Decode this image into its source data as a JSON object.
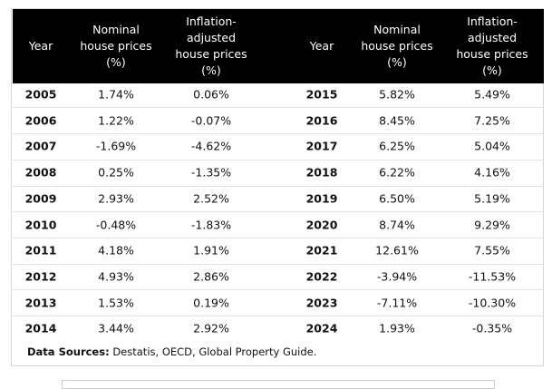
{
  "table": {
    "headers": [
      "Year",
      "Nominal house prices (%)",
      "Inflation-adjusted house prices (%)",
      "Year",
      "Nominal house prices (%)",
      "Inflation-adjusted house prices (%)"
    ],
    "rows": [
      [
        "2005",
        "1.74%",
        "0.06%",
        "2015",
        "5.82%",
        "5.49%"
      ],
      [
        "2006",
        "1.22%",
        "-0.07%",
        "2016",
        "8.45%",
        "7.25%"
      ],
      [
        "2007",
        "-1.69%",
        "-4.62%",
        "2017",
        "6.25%",
        "5.04%"
      ],
      [
        "2008",
        "0.25%",
        "-1.35%",
        "2018",
        "6.22%",
        "4.16%"
      ],
      [
        "2009",
        "2.93%",
        "2.52%",
        "2019",
        "6.50%",
        "5.19%"
      ],
      [
        "2010",
        "-0.48%",
        "-1.83%",
        "2020",
        "8.74%",
        "9.29%"
      ],
      [
        "2011",
        "4.18%",
        "1.91%",
        "2021",
        "12.61%",
        "7.55%"
      ],
      [
        "2012",
        "4.93%",
        "2.86%",
        "2022",
        "-3.94%",
        "-11.53%"
      ],
      [
        "2013",
        "1.53%",
        "0.19%",
        "2023",
        "-7.11%",
        "-10.30%"
      ],
      [
        "2014",
        "3.44%",
        "2.92%",
        "2024",
        "1.93%",
        "-0.35%"
      ]
    ]
  },
  "footer": {
    "label": "Data Sources:",
    "text": "Destatis, OECD, Global Property Guide."
  }
}
